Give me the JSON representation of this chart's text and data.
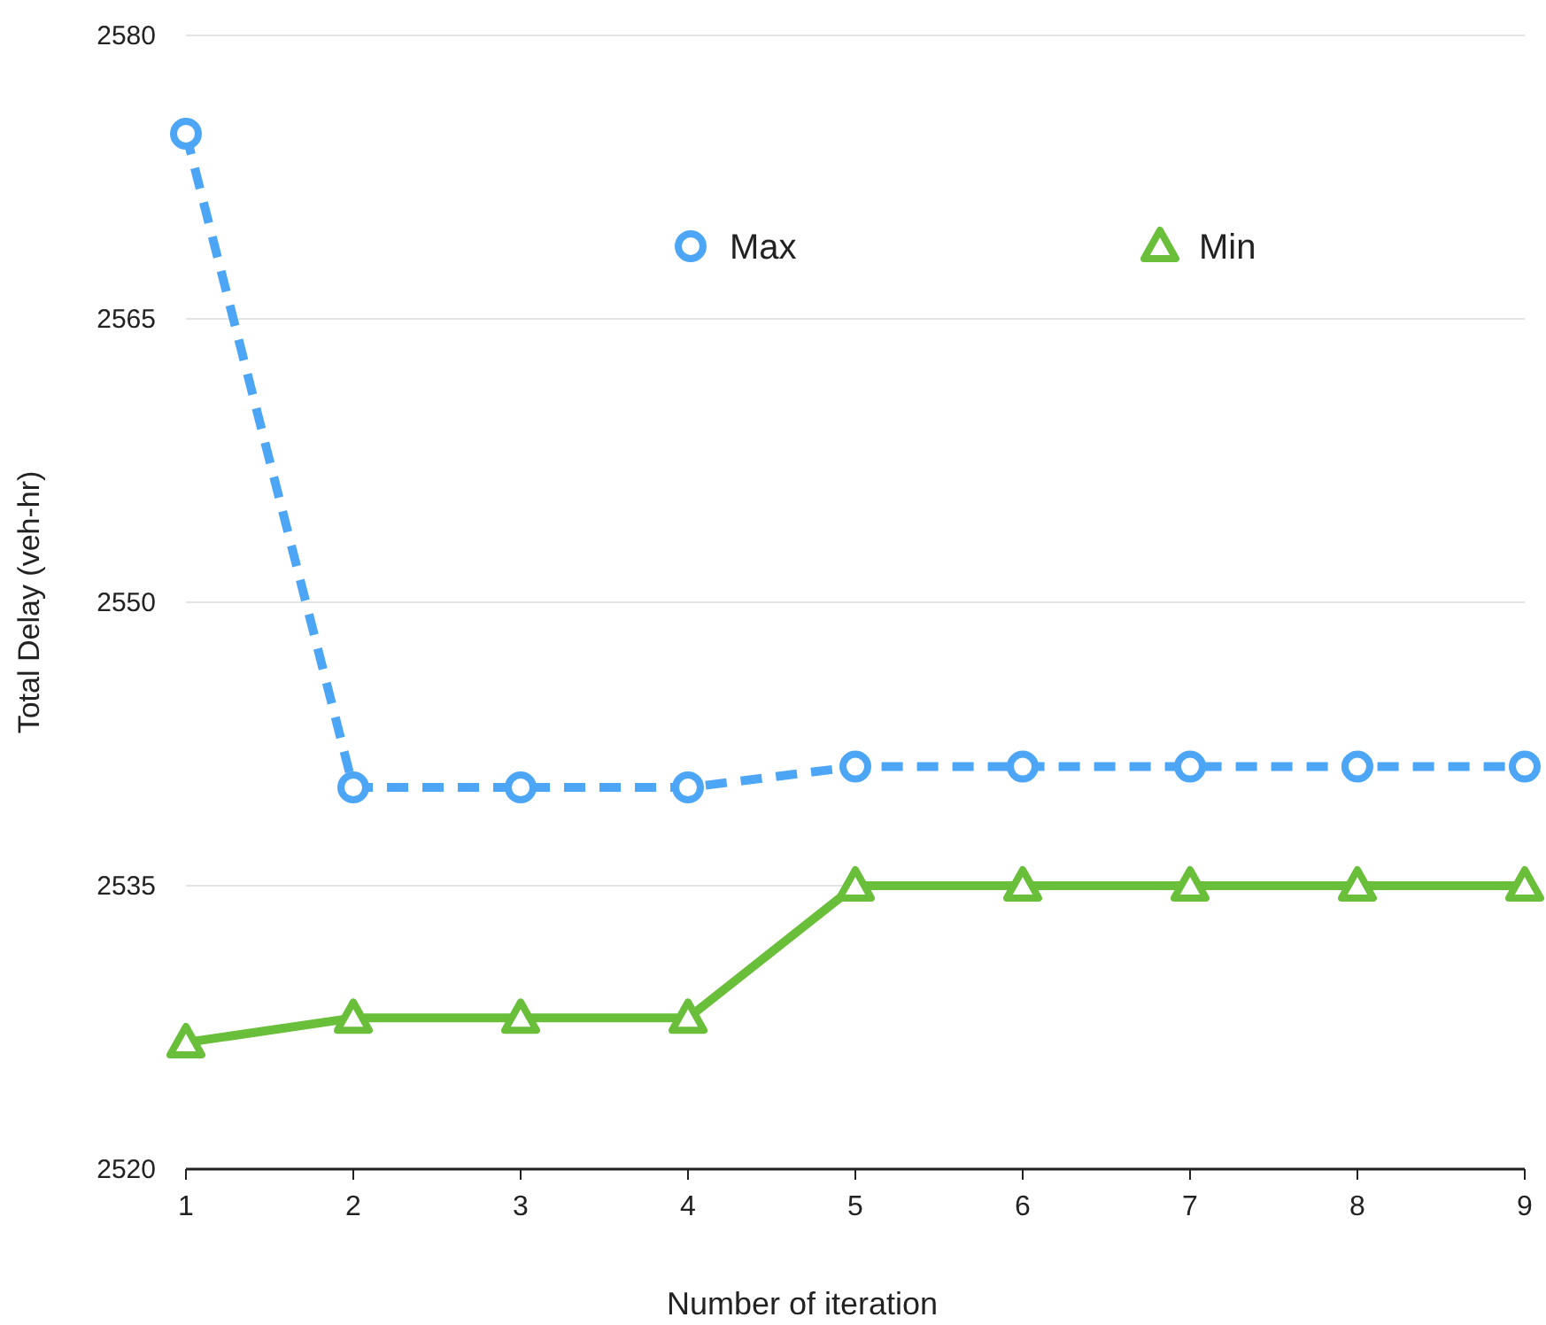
{
  "chart_data": {
    "type": "line",
    "xlabel": "Number of iteration",
    "ylabel": "Total Delay (veh-hr)",
    "x": [
      1,
      2,
      3,
      4,
      5,
      6,
      7,
      8,
      9
    ],
    "xlim": [
      1,
      9
    ],
    "xticks": [
      1,
      2,
      3,
      4,
      5,
      6,
      7,
      8,
      9
    ],
    "ylim": [
      2520,
      2580
    ],
    "yticks": [
      2520,
      2535,
      2550,
      2565,
      2580
    ],
    "grid": "y",
    "legend": "top right",
    "series": [
      {
        "name": "Max",
        "color": "#4da6f5",
        "marker": "circle",
        "line_style": "dashed",
        "values": [
          2574.8,
          2540.2,
          2540.2,
          2540.2,
          2541.3,
          2541.3,
          2541.3,
          2541.3,
          2541.3
        ]
      },
      {
        "name": "Min",
        "color": "#6abf3a",
        "marker": "triangle",
        "line_style": "solid",
        "values": [
          2526.7,
          2528,
          2528,
          2528,
          2535,
          2535,
          2535,
          2535,
          2535
        ]
      }
    ]
  }
}
